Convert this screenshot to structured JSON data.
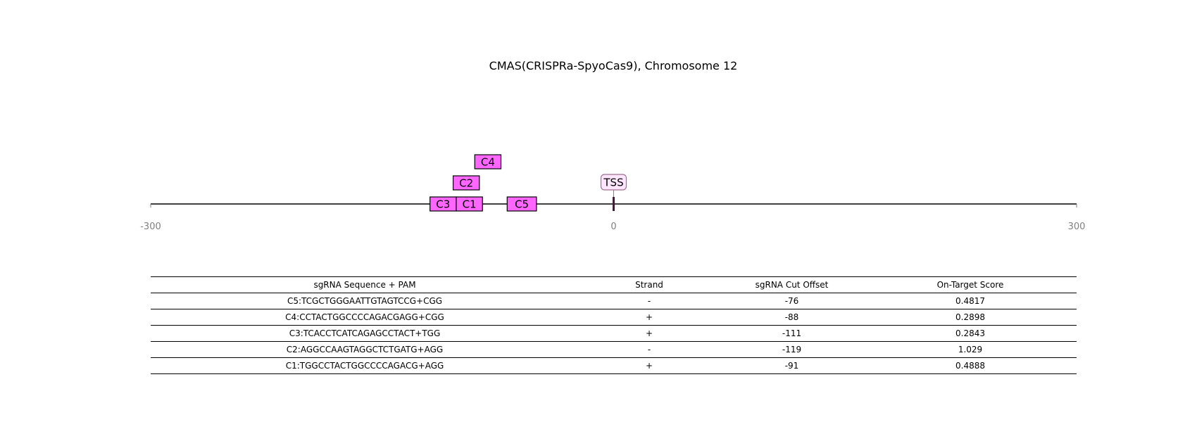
{
  "chart_data": {
    "type": "guide-map",
    "title": "CMAS(CRISPRa-SpyoCas9), Chromosome 12",
    "xlim": [
      -300,
      300
    ],
    "ticks": [
      -300,
      0,
      300
    ],
    "tick_labels": [
      "-300",
      "0",
      "300"
    ],
    "tss": {
      "label": "TSS",
      "position": 0
    },
    "guides": [
      {
        "label": "C5",
        "start": -69,
        "end": -50,
        "row": 0
      },
      {
        "label": "C4",
        "start": -90,
        "end": -73,
        "row": 2
      },
      {
        "label": "C3",
        "start": -119,
        "end": -102,
        "row": 0
      },
      {
        "label": "C2",
        "start": -104,
        "end": -87,
        "row": 1
      },
      {
        "label": "C1",
        "start": -102,
        "end": -85,
        "row": 0
      }
    ],
    "colors": {
      "guide_fill": "#ff66ff",
      "tss_fill": "#ffe6ff",
      "tss_edge": "#a07090",
      "tss_mark": "#3d1f33",
      "axis": "#000000"
    }
  },
  "table": {
    "headers": [
      "sgRNA Sequence + PAM",
      "Strand",
      "sgRNA Cut Offset",
      "On-Target Score"
    ],
    "rows": [
      [
        "C5:TCGCTGGGAATTGTAGTCCG+CGG",
        "-",
        "-76",
        "0.4817"
      ],
      [
        "C4:CCTACTGGCCCCAGACGAGG+CGG",
        "+",
        "-88",
        "0.2898"
      ],
      [
        "C3:TCACCTCATCAGAGCCTACT+TGG",
        "+",
        "-111",
        "0.2843"
      ],
      [
        "C2:AGGCCAAGTAGGCTCTGATG+AGG",
        "-",
        "-119",
        "1.029"
      ],
      [
        "C1:TGGCCTACTGGCCCCAGACG+AGG",
        "+",
        "-91",
        "0.4888"
      ]
    ]
  }
}
